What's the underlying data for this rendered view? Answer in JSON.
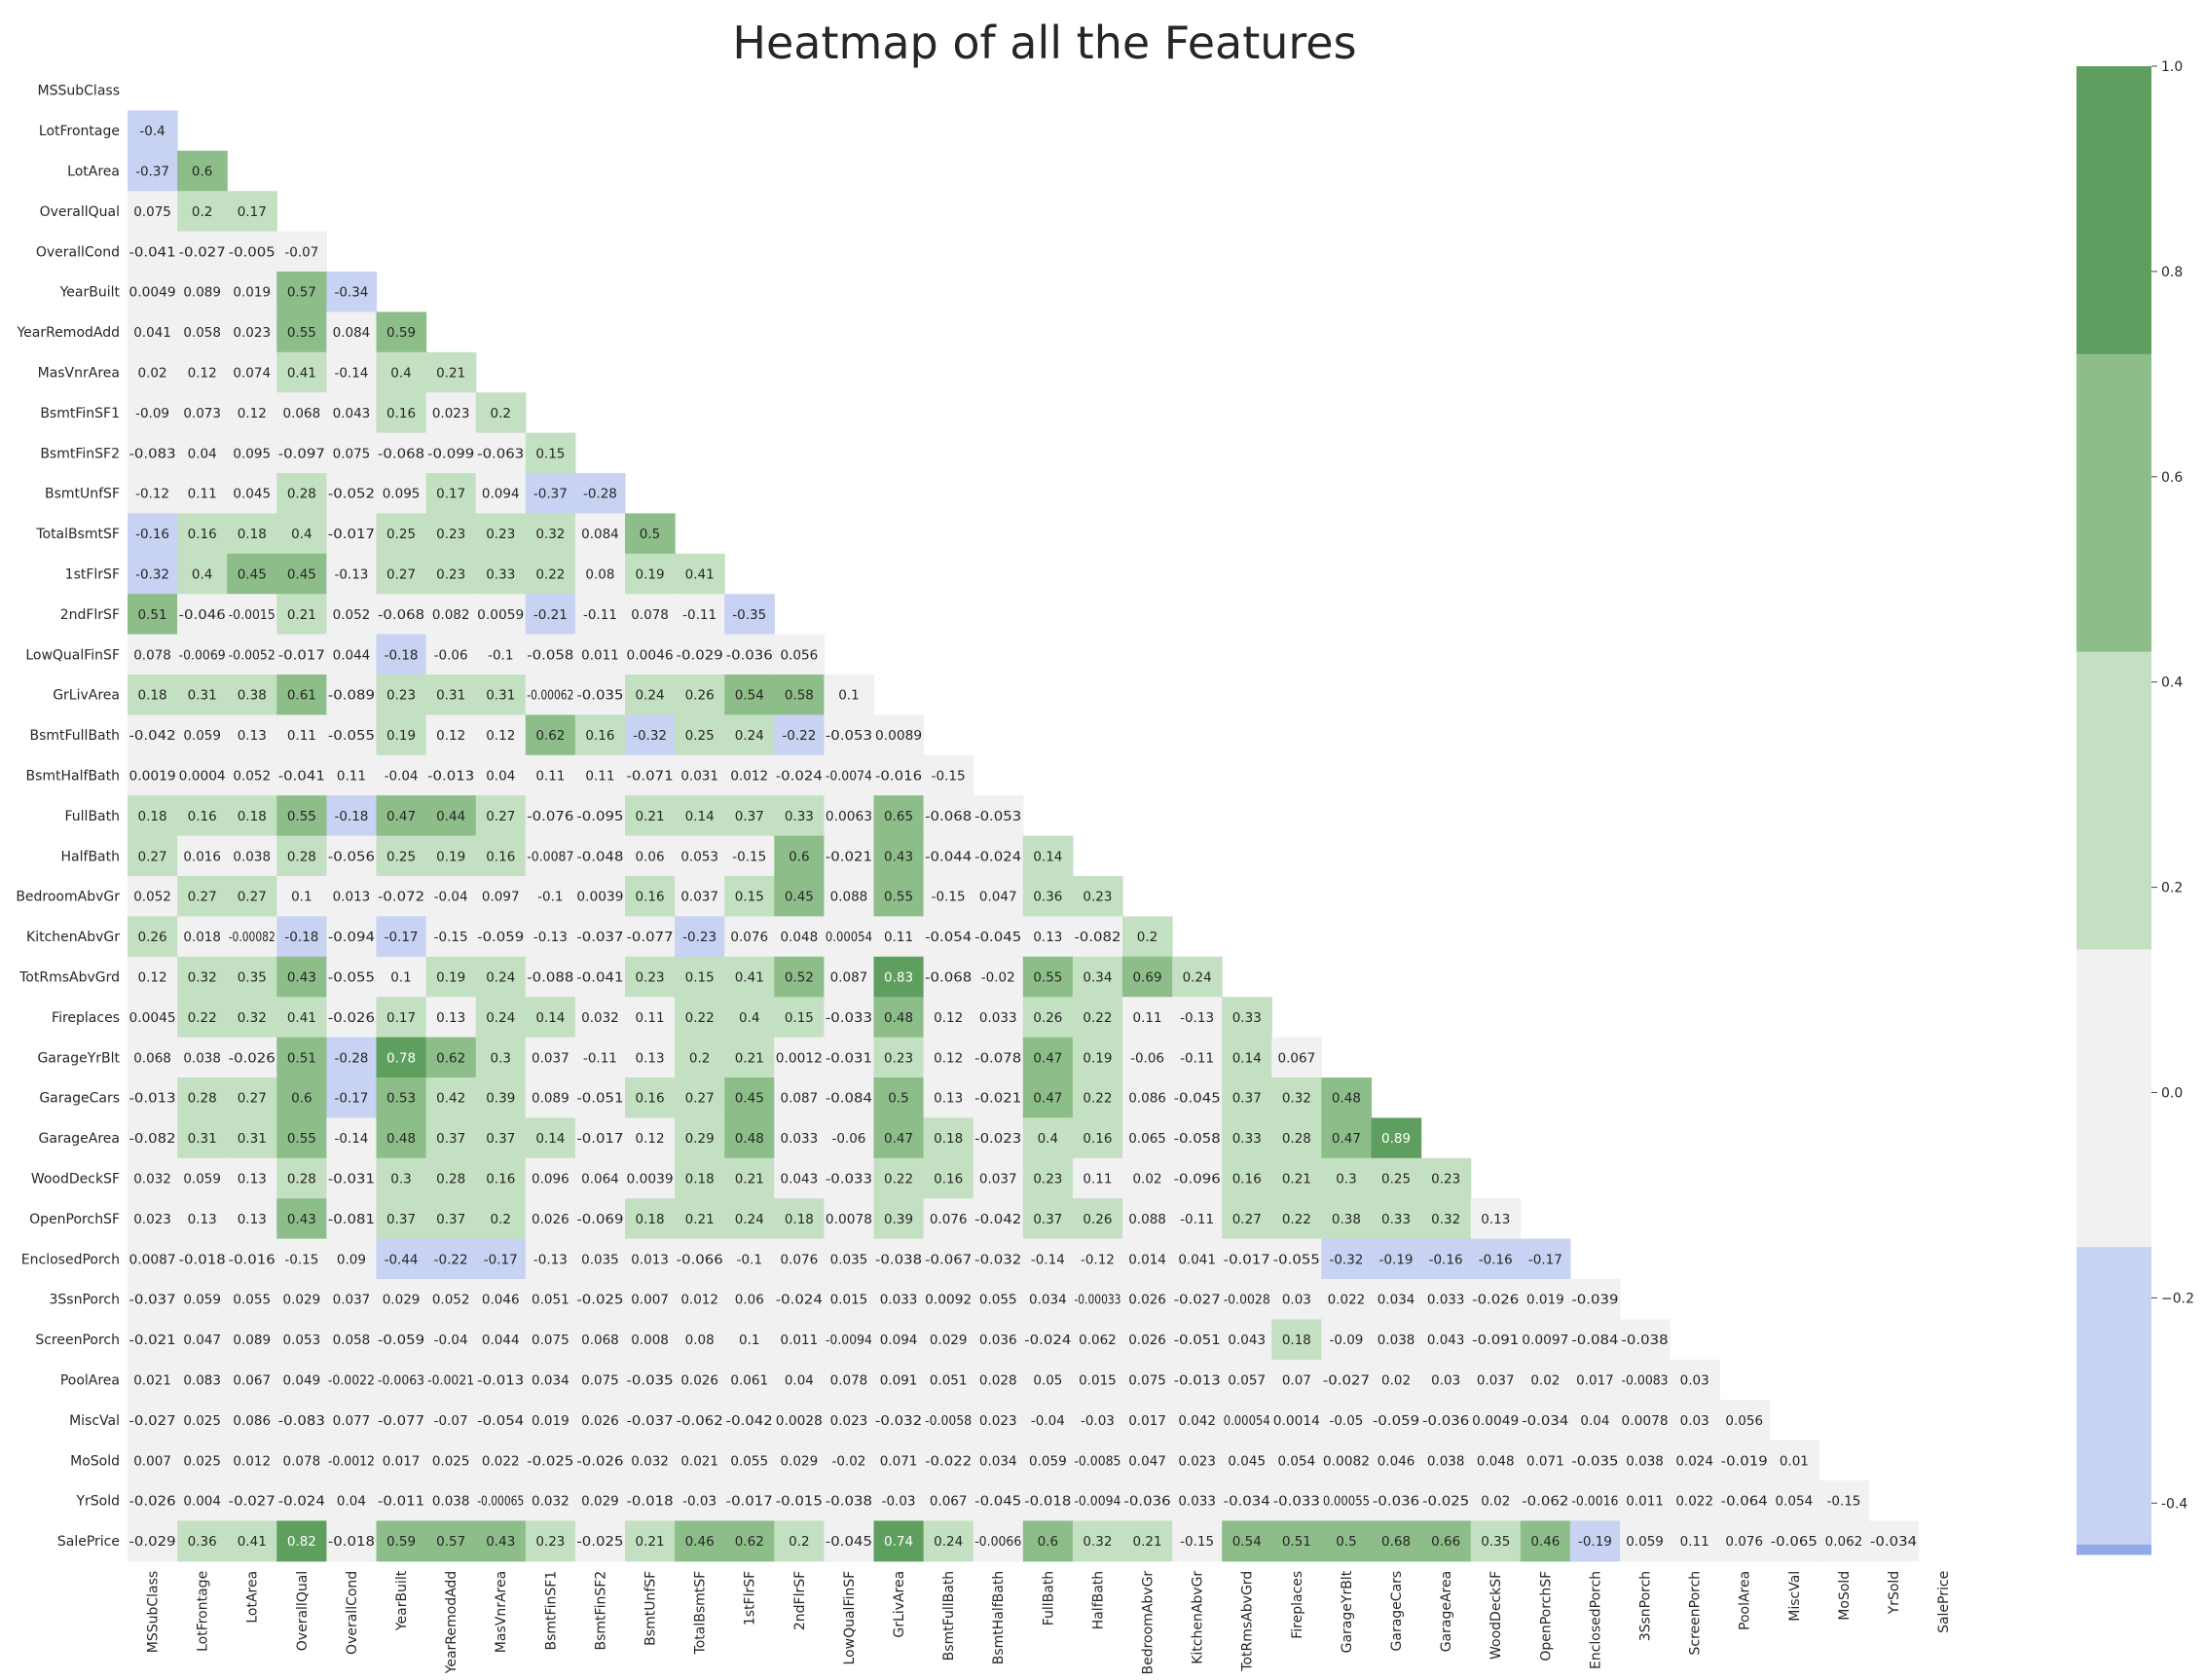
{
  "chart_data": {
    "type": "heatmap",
    "title": "Heatmap of all the Features",
    "mask": "upper-triangle-and-diagonal",
    "labels": [
      "MSSubClass",
      "LotFrontage",
      "LotArea",
      "OverallQual",
      "OverallCond",
      "YearBuilt",
      "YearRemodAdd",
      "MasVnrArea",
      "BsmtFinSF1",
      "BsmtFinSF2",
      "BsmtUnfSF",
      "TotalBsmtSF",
      "1stFlrSF",
      "2ndFlrSF",
      "LowQualFinSF",
      "GrLivArea",
      "BsmtFullBath",
      "BsmtHalfBath",
      "FullBath",
      "HalfBath",
      "BedroomAbvGr",
      "KitchenAbvGr",
      "TotRmsAbvGrd",
      "Fireplaces",
      "GarageYrBlt",
      "GarageCars",
      "GarageArea",
      "WoodDeckSF",
      "OpenPorchSF",
      "EnclosedPorch",
      "3SsnPorch",
      "ScreenPorch",
      "PoolArea",
      "MiscVal",
      "MoSold",
      "YrSold",
      "SalePrice"
    ],
    "rows": [
      [],
      [
        "-0.4"
      ],
      [
        "-0.37",
        "0.6"
      ],
      [
        "0.075",
        "0.2",
        "0.17"
      ],
      [
        "-0.041",
        "-0.027",
        "-0.005",
        "-0.07"
      ],
      [
        "0.0049",
        "0.089",
        "0.019",
        "0.57",
        "-0.34"
      ],
      [
        "0.041",
        "0.058",
        "0.023",
        "0.55",
        "0.084",
        "0.59"
      ],
      [
        "0.02",
        "0.12",
        "0.074",
        "0.41",
        "-0.14",
        "0.4",
        "0.21"
      ],
      [
        "-0.09",
        "0.073",
        "0.12",
        "0.068",
        "0.043",
        "0.16",
        "0.023",
        "0.2"
      ],
      [
        "-0.083",
        "0.04",
        "0.095",
        "-0.097",
        "0.075",
        "-0.068",
        "-0.099",
        "-0.063",
        "0.15"
      ],
      [
        "-0.12",
        "0.11",
        "0.045",
        "0.28",
        "-0.052",
        "0.095",
        "0.17",
        "0.094",
        "-0.37",
        "-0.28"
      ],
      [
        "-0.16",
        "0.16",
        "0.18",
        "0.4",
        "-0.017",
        "0.25",
        "0.23",
        "0.23",
        "0.32",
        "0.084",
        "0.5"
      ],
      [
        "-0.32",
        "0.4",
        "0.45",
        "0.45",
        "-0.13",
        "0.27",
        "0.23",
        "0.33",
        "0.22",
        "0.08",
        "0.19",
        "0.41"
      ],
      [
        "0.51",
        "-0.046",
        "-0.0015",
        "0.21",
        "0.052",
        "-0.068",
        "0.082",
        "0.0059",
        "-0.21",
        "-0.11",
        "0.078",
        "-0.11",
        "-0.35"
      ],
      [
        "0.078",
        "-0.0069",
        "-0.0052",
        "-0.017",
        "0.044",
        "-0.18",
        "-0.06",
        "-0.1",
        "-0.058",
        "0.011",
        "0.0046",
        "-0.029",
        "-0.036",
        "0.056"
      ],
      [
        "0.18",
        "0.31",
        "0.38",
        "0.61",
        "-0.089",
        "0.23",
        "0.31",
        "0.31",
        "-0.00062",
        "-0.035",
        "0.24",
        "0.26",
        "0.54",
        "0.58",
        "0.1"
      ],
      [
        "-0.042",
        "0.059",
        "0.13",
        "0.11",
        "-0.055",
        "0.19",
        "0.12",
        "0.12",
        "0.62",
        "0.16",
        "-0.32",
        "0.25",
        "0.24",
        "-0.22",
        "-0.053",
        "0.0089"
      ],
      [
        "0.0019",
        "0.0004",
        "0.052",
        "-0.041",
        "0.11",
        "-0.04",
        "-0.013",
        "0.04",
        "0.11",
        "0.11",
        "-0.071",
        "0.031",
        "0.012",
        "-0.024",
        "-0.0074",
        "-0.016",
        "-0.15"
      ],
      [
        "0.18",
        "0.16",
        "0.18",
        "0.55",
        "-0.18",
        "0.47",
        "0.44",
        "0.27",
        "-0.076",
        "-0.095",
        "0.21",
        "0.14",
        "0.37",
        "0.33",
        "0.0063",
        "0.65",
        "-0.068",
        "-0.053"
      ],
      [
        "0.27",
        "0.016",
        "0.038",
        "0.28",
        "-0.056",
        "0.25",
        "0.19",
        "0.16",
        "-0.0087",
        "-0.048",
        "0.06",
        "0.053",
        "-0.15",
        "0.6",
        "-0.021",
        "0.43",
        "-0.044",
        "-0.024",
        "0.14"
      ],
      [
        "0.052",
        "0.27",
        "0.27",
        "0.1",
        "0.013",
        "-0.072",
        "-0.04",
        "0.097",
        "-0.1",
        "0.0039",
        "0.16",
        "0.037",
        "0.15",
        "0.45",
        "0.088",
        "0.55",
        "-0.15",
        "0.047",
        "0.36",
        "0.23"
      ],
      [
        "0.26",
        "0.018",
        "-0.00082",
        "-0.18",
        "-0.094",
        "-0.17",
        "-0.15",
        "-0.059",
        "-0.13",
        "-0.037",
        "-0.077",
        "-0.23",
        "0.076",
        "0.048",
        "0.00054",
        "0.11",
        "-0.054",
        "-0.045",
        "0.13",
        "-0.082",
        "0.2"
      ],
      [
        "0.12",
        "0.32",
        "0.35",
        "0.43",
        "-0.055",
        "0.1",
        "0.19",
        "0.24",
        "-0.088",
        "-0.041",
        "0.23",
        "0.15",
        "0.41",
        "0.52",
        "0.087",
        "0.83",
        "-0.068",
        "-0.02",
        "0.55",
        "0.34",
        "0.69",
        "0.24"
      ],
      [
        "0.0045",
        "0.22",
        "0.32",
        "0.41",
        "-0.026",
        "0.17",
        "0.13",
        "0.24",
        "0.14",
        "0.032",
        "0.11",
        "0.22",
        "0.4",
        "0.15",
        "-0.033",
        "0.48",
        "0.12",
        "0.033",
        "0.26",
        "0.22",
        "0.11",
        "-0.13",
        "0.33"
      ],
      [
        "0.068",
        "0.038",
        "-0.026",
        "0.51",
        "-0.28",
        "0.78",
        "0.62",
        "0.3",
        "0.037",
        "-0.11",
        "0.13",
        "0.2",
        "0.21",
        "0.0012",
        "-0.031",
        "0.23",
        "0.12",
        "-0.078",
        "0.47",
        "0.19",
        "-0.06",
        "-0.11",
        "0.14",
        "0.067"
      ],
      [
        "-0.013",
        "0.28",
        "0.27",
        "0.6",
        "-0.17",
        "0.53",
        "0.42",
        "0.39",
        "0.089",
        "-0.051",
        "0.16",
        "0.27",
        "0.45",
        "0.087",
        "-0.084",
        "0.5",
        "0.13",
        "-0.021",
        "0.47",
        "0.22",
        "0.086",
        "-0.045",
        "0.37",
        "0.32",
        "0.48"
      ],
      [
        "-0.082",
        "0.31",
        "0.31",
        "0.55",
        "-0.14",
        "0.48",
        "0.37",
        "0.37",
        "0.14",
        "-0.017",
        "0.12",
        "0.29",
        "0.48",
        "0.033",
        "-0.06",
        "0.47",
        "0.18",
        "-0.023",
        "0.4",
        "0.16",
        "0.065",
        "-0.058",
        "0.33",
        "0.28",
        "0.47",
        "0.89"
      ],
      [
        "0.032",
        "0.059",
        "0.13",
        "0.28",
        "-0.031",
        "0.3",
        "0.28",
        "0.16",
        "0.096",
        "0.064",
        "0.0039",
        "0.18",
        "0.21",
        "0.043",
        "-0.033",
        "0.22",
        "0.16",
        "0.037",
        "0.23",
        "0.11",
        "0.02",
        "-0.096",
        "0.16",
        "0.21",
        "0.3",
        "0.25",
        "0.23"
      ],
      [
        "0.023",
        "0.13",
        "0.13",
        "0.43",
        "-0.081",
        "0.37",
        "0.37",
        "0.2",
        "0.026",
        "-0.069",
        "0.18",
        "0.21",
        "0.24",
        "0.18",
        "0.0078",
        "0.39",
        "0.076",
        "-0.042",
        "0.37",
        "0.26",
        "0.088",
        "-0.11",
        "0.27",
        "0.22",
        "0.38",
        "0.33",
        "0.32",
        "0.13"
      ],
      [
        "0.0087",
        "-0.018",
        "-0.016",
        "-0.15",
        "0.09",
        "-0.44",
        "-0.22",
        "-0.17",
        "-0.13",
        "0.035",
        "0.013",
        "-0.066",
        "-0.1",
        "0.076",
        "0.035",
        "-0.038",
        "-0.067",
        "-0.032",
        "-0.14",
        "-0.12",
        "0.014",
        "0.041",
        "-0.017",
        "-0.055",
        "-0.32",
        "-0.19",
        "-0.16",
        "-0.16",
        "-0.17"
      ],
      [
        "-0.037",
        "0.059",
        "0.055",
        "0.029",
        "0.037",
        "0.029",
        "0.052",
        "0.046",
        "0.051",
        "-0.025",
        "0.007",
        "0.012",
        "0.06",
        "-0.024",
        "0.015",
        "0.033",
        "0.0092",
        "0.055",
        "0.034",
        "-0.00033",
        "0.026",
        "-0.027",
        "-0.0028",
        "0.03",
        "0.022",
        "0.034",
        "0.033",
        "-0.026",
        "0.019",
        "-0.039"
      ],
      [
        "-0.021",
        "0.047",
        "0.089",
        "0.053",
        "0.058",
        "-0.059",
        "-0.04",
        "0.044",
        "0.075",
        "0.068",
        "0.008",
        "0.08",
        "0.1",
        "0.011",
        "-0.0094",
        "0.094",
        "0.029",
        "0.036",
        "-0.024",
        "0.062",
        "0.026",
        "-0.051",
        "0.043",
        "0.18",
        "-0.09",
        "0.038",
        "0.043",
        "-0.091",
        "0.0097",
        "-0.084",
        "-0.038"
      ],
      [
        "0.021",
        "0.083",
        "0.067",
        "0.049",
        "-0.0022",
        "-0.0063",
        "-0.0021",
        "-0.013",
        "0.034",
        "0.075",
        "-0.035",
        "0.026",
        "0.061",
        "0.04",
        "0.078",
        "0.091",
        "0.051",
        "0.028",
        "0.05",
        "0.015",
        "0.075",
        "-0.013",
        "0.057",
        "0.07",
        "-0.027",
        "0.02",
        "0.03",
        "0.037",
        "0.02",
        "0.017",
        "-0.0083",
        "0.03"
      ],
      [
        "-0.027",
        "0.025",
        "0.086",
        "-0.083",
        "0.077",
        "-0.077",
        "-0.07",
        "-0.054",
        "0.019",
        "0.026",
        "-0.037",
        "-0.062",
        "-0.042",
        "0.0028",
        "0.023",
        "-0.032",
        "-0.0058",
        "0.023",
        "-0.04",
        "-0.03",
        "0.017",
        "0.042",
        "0.00054",
        "0.0014",
        "-0.05",
        "-0.059",
        "-0.036",
        "0.0049",
        "-0.034",
        "0.04",
        "0.0078",
        "0.03",
        "0.056"
      ],
      [
        "0.007",
        "0.025",
        "0.012",
        "0.078",
        "-0.0012",
        "0.017",
        "0.025",
        "0.022",
        "-0.025",
        "-0.026",
        "0.032",
        "0.021",
        "0.055",
        "0.029",
        "-0.02",
        "0.071",
        "-0.022",
        "0.034",
        "0.059",
        "-0.0085",
        "0.047",
        "0.023",
        "0.045",
        "0.054",
        "0.0082",
        "0.046",
        "0.038",
        "0.048",
        "0.071",
        "-0.035",
        "0.038",
        "0.024",
        "-0.019",
        "0.01"
      ],
      [
        "-0.026",
        "0.004",
        "-0.027",
        "-0.024",
        "0.04",
        "-0.011",
        "0.038",
        "-0.00065",
        "0.032",
        "0.029",
        "-0.018",
        "-0.03",
        "-0.017",
        "-0.015",
        "-0.038",
        "-0.03",
        "0.067",
        "-0.045",
        "-0.018",
        "-0.0094",
        "-0.036",
        "0.033",
        "-0.034",
        "-0.033",
        "0.00055",
        "-0.036",
        "-0.025",
        "0.02",
        "-0.062",
        "-0.0016",
        "0.011",
        "0.022",
        "-0.064",
        "0.054",
        "-0.15"
      ],
      [
        "-0.029",
        "0.36",
        "0.41",
        "0.82",
        "-0.018",
        "0.59",
        "0.57",
        "0.43",
        "0.23",
        "-0.025",
        "0.21",
        "0.46",
        "0.62",
        "0.2",
        "-0.045",
        "0.74",
        "0.24",
        "-0.0066",
        "0.6",
        "0.32",
        "0.21",
        "-0.15",
        "0.54",
        "0.51",
        "0.5",
        "0.68",
        "0.66",
        "0.35",
        "0.46",
        "-0.19",
        "0.059",
        "0.11",
        "0.076",
        "-0.065",
        "0.062",
        "-0.034"
      ]
    ],
    "colorbar": {
      "ticks": [
        "-0.4",
        "−0.2",
        "0.0",
        "0.2",
        "0.4",
        "0.6",
        "0.8",
        "1.0"
      ],
      "range": [
        -0.45,
        1.0
      ],
      "bands": [
        {
          "from": -0.45,
          "to": -0.44,
          "color": "#8fa9e9"
        },
        {
          "from": -0.44,
          "to": -0.15,
          "color": "#c8d2f2"
        },
        {
          "from": -0.15,
          "to": 0.14,
          "color": "#f1f1f1"
        },
        {
          "from": 0.14,
          "to": 0.43,
          "color": "#c4e0c2"
        },
        {
          "from": 0.43,
          "to": 0.72,
          "color": "#8dbe89"
        },
        {
          "from": 0.72,
          "to": 1.0,
          "color": "#5e9e5e"
        }
      ]
    }
  }
}
